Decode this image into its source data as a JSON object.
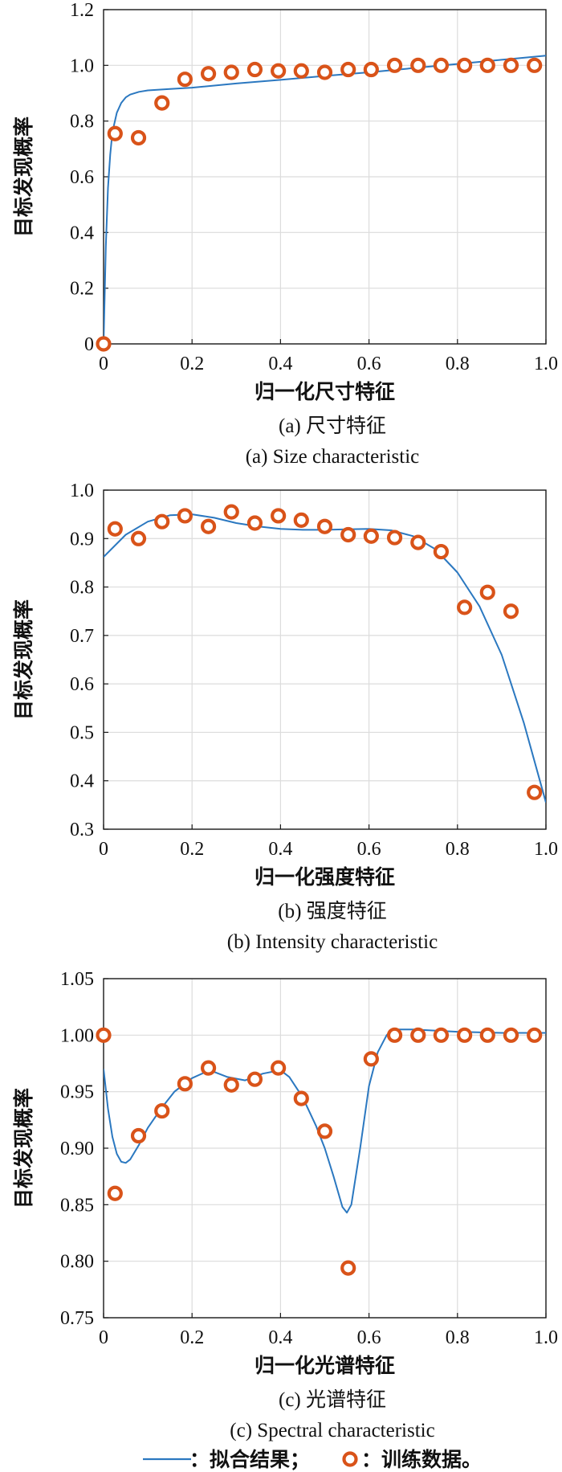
{
  "colors": {
    "fit_line": "#2b78c0",
    "marker": "#d95319",
    "grid": "#dcdcdc",
    "axis": "#1a1a1a"
  },
  "legend": {
    "fit_label": "：拟合结果；",
    "train_label": "：训练数据。"
  },
  "chart_data": [
    {
      "type": "scatter",
      "caption_cn": "(a) 尺寸特征",
      "caption_en": "(a) Size characteristic",
      "xlabel": "归一化尺寸特征",
      "ylabel": "目标发现概率",
      "xlim": [
        0,
        1.0
      ],
      "ylim": [
        0,
        1.2
      ],
      "xticks": [
        "0",
        "0.2",
        "0.4",
        "0.6",
        "0.8",
        "1.0"
      ],
      "yticks": [
        "0",
        "0.2",
        "0.4",
        "0.6",
        "0.8",
        "1.0",
        "1.2"
      ],
      "grid": true,
      "series": [
        {
          "kind": "markers",
          "x": [
            0,
            0.026,
            0.079,
            0.132,
            0.184,
            0.237,
            0.289,
            0.342,
            0.395,
            0.447,
            0.5,
            0.553,
            0.605,
            0.658,
            0.711,
            0.763,
            0.816,
            0.868,
            0.921,
            0.974
          ],
          "y": [
            0,
            0.755,
            0.74,
            0.865,
            0.95,
            0.97,
            0.975,
            0.985,
            0.98,
            0.98,
            0.975,
            0.985,
            0.985,
            1.0,
            1.0,
            1.0,
            1.0,
            1.0,
            1.0,
            1.0
          ]
        },
        {
          "kind": "line",
          "x": [
            0,
            0.005,
            0.01,
            0.015,
            0.02,
            0.03,
            0.04,
            0.05,
            0.06,
            0.08,
            0.1,
            0.15,
            0.2,
            0.3,
            0.4,
            0.5,
            0.6,
            0.7,
            0.8,
            0.9,
            1.0
          ],
          "y": [
            0,
            0.35,
            0.56,
            0.68,
            0.76,
            0.83,
            0.865,
            0.885,
            0.895,
            0.905,
            0.91,
            0.915,
            0.92,
            0.935,
            0.948,
            0.962,
            0.975,
            0.99,
            1.005,
            1.02,
            1.035
          ]
        }
      ]
    },
    {
      "type": "scatter",
      "caption_cn": "(b) 强度特征",
      "caption_en": "(b) Intensity characteristic",
      "xlabel": "归一化强度特征",
      "ylabel": "目标发现概率",
      "xlim": [
        0,
        1.0
      ],
      "ylim": [
        0.3,
        1.0
      ],
      "xticks": [
        "0",
        "0.2",
        "0.4",
        "0.6",
        "0.8",
        "1.0"
      ],
      "yticks": [
        "0.3",
        "0.4",
        "0.5",
        "0.6",
        "0.7",
        "0.8",
        "0.9",
        "1.0"
      ],
      "grid": true,
      "series": [
        {
          "kind": "markers",
          "x": [
            0.026,
            0.079,
            0.132,
            0.184,
            0.237,
            0.289,
            0.342,
            0.395,
            0.447,
            0.5,
            0.553,
            0.605,
            0.658,
            0.711,
            0.763,
            0.816,
            0.868,
            0.921,
            0.974
          ],
          "y": [
            0.92,
            0.9,
            0.935,
            0.947,
            0.925,
            0.955,
            0.932,
            0.947,
            0.938,
            0.925,
            0.908,
            0.905,
            0.902,
            0.892,
            0.873,
            0.758,
            0.789,
            0.75,
            0.376
          ]
        },
        {
          "kind": "line",
          "x": [
            0,
            0.05,
            0.1,
            0.15,
            0.2,
            0.25,
            0.3,
            0.35,
            0.4,
            0.45,
            0.5,
            0.55,
            0.6,
            0.65,
            0.7,
            0.75,
            0.8,
            0.85,
            0.9,
            0.95,
            1.0
          ],
          "y": [
            0.862,
            0.908,
            0.935,
            0.948,
            0.95,
            0.943,
            0.932,
            0.925,
            0.92,
            0.918,
            0.918,
            0.919,
            0.92,
            0.917,
            0.905,
            0.878,
            0.83,
            0.76,
            0.66,
            0.52,
            0.355
          ]
        }
      ]
    },
    {
      "type": "scatter",
      "caption_cn": "(c) 光谱特征",
      "caption_en": "(c) Spectral characteristic",
      "xlabel": "归一化光谱特征",
      "ylabel": "目标发现概率",
      "xlim": [
        0,
        1.0
      ],
      "ylim": [
        0.75,
        1.05
      ],
      "xticks": [
        "0",
        "0.2",
        "0.4",
        "0.6",
        "0.8",
        "1.0"
      ],
      "yticks": [
        "0.75",
        "0.80",
        "0.85",
        "0.90",
        "0.95",
        "1.00",
        "1.05"
      ],
      "grid": true,
      "series": [
        {
          "kind": "markers",
          "x": [
            0,
            0.026,
            0.079,
            0.132,
            0.184,
            0.237,
            0.289,
            0.342,
            0.395,
            0.447,
            0.5,
            0.553,
            0.605,
            0.658,
            0.711,
            0.763,
            0.816,
            0.868,
            0.921,
            0.974
          ],
          "y": [
            1.0,
            0.86,
            0.911,
            0.933,
            0.957,
            0.971,
            0.956,
            0.961,
            0.971,
            0.944,
            0.915,
            0.794,
            0.979,
            1.0,
            1.0,
            1.0,
            1.0,
            1.0,
            1.0,
            1.0
          ]
        },
        {
          "kind": "line",
          "x": [
            0,
            0.01,
            0.02,
            0.03,
            0.04,
            0.05,
            0.06,
            0.08,
            0.1,
            0.13,
            0.16,
            0.2,
            0.24,
            0.28,
            0.32,
            0.36,
            0.4,
            0.42,
            0.45,
            0.48,
            0.5,
            0.52,
            0.54,
            0.55,
            0.56,
            0.58,
            0.6,
            0.62,
            0.64,
            0.65,
            0.66,
            0.7,
            0.8,
            0.9,
            1.0
          ],
          "y": [
            0.97,
            0.935,
            0.91,
            0.895,
            0.888,
            0.887,
            0.89,
            0.903,
            0.918,
            0.935,
            0.95,
            0.962,
            0.969,
            0.963,
            0.96,
            0.966,
            0.969,
            0.963,
            0.945,
            0.92,
            0.9,
            0.875,
            0.848,
            0.843,
            0.85,
            0.9,
            0.955,
            0.985,
            1.0,
            1.004,
            1.005,
            1.005,
            1.003,
            1.002,
            1.002
          ]
        }
      ]
    }
  ]
}
